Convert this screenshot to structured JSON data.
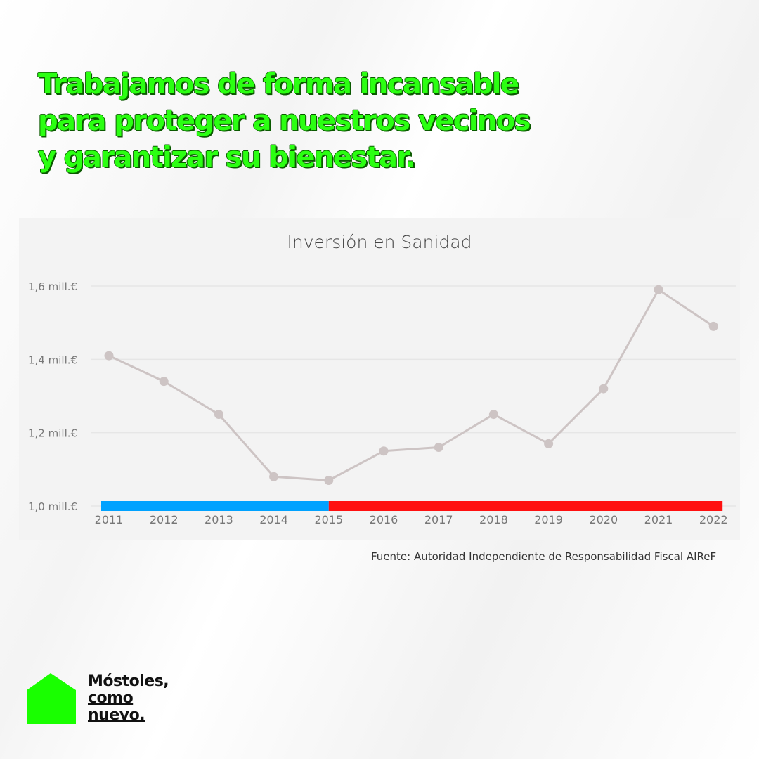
{
  "headline": [
    "Trabajamos de forma incansable",
    "para proteger a nuestros vecinos",
    "y garantizar su bienestar."
  ],
  "chart_data": {
    "type": "line",
    "title": "Inversión en Sanidad",
    "categories": [
      "2011",
      "2012",
      "2013",
      "2014",
      "2015",
      "2016",
      "2017",
      "2018",
      "2019",
      "2020",
      "2021",
      "2022"
    ],
    "values": [
      1.41,
      1.34,
      1.25,
      1.08,
      1.07,
      1.15,
      1.16,
      1.25,
      1.17,
      1.32,
      1.59,
      1.49
    ],
    "ylim": [
      1.0,
      1.6
    ],
    "yticks": [
      {
        "v": 1.6,
        "label": "1,6 mill.€"
      },
      {
        "v": 1.4,
        "label": "1,4 mill.€"
      },
      {
        "v": 1.2,
        "label": "1,2 mill.€"
      },
      {
        "v": 1.0,
        "label": "1,0 mill.€"
      }
    ],
    "grid": true,
    "line_color": "#cdc4c4",
    "period_bands": [
      {
        "from": "2011",
        "to": "2015",
        "color": "#00a2ff"
      },
      {
        "from": "2015",
        "to": "2022",
        "color": "#ff1010"
      }
    ]
  },
  "source": "Fuente: Autoridad Independiente de Responsabilidad Fiscal AIReF",
  "logo": {
    "lines": [
      "Móstoles,",
      "como",
      "nuevo."
    ],
    "color": "#19ff00"
  }
}
